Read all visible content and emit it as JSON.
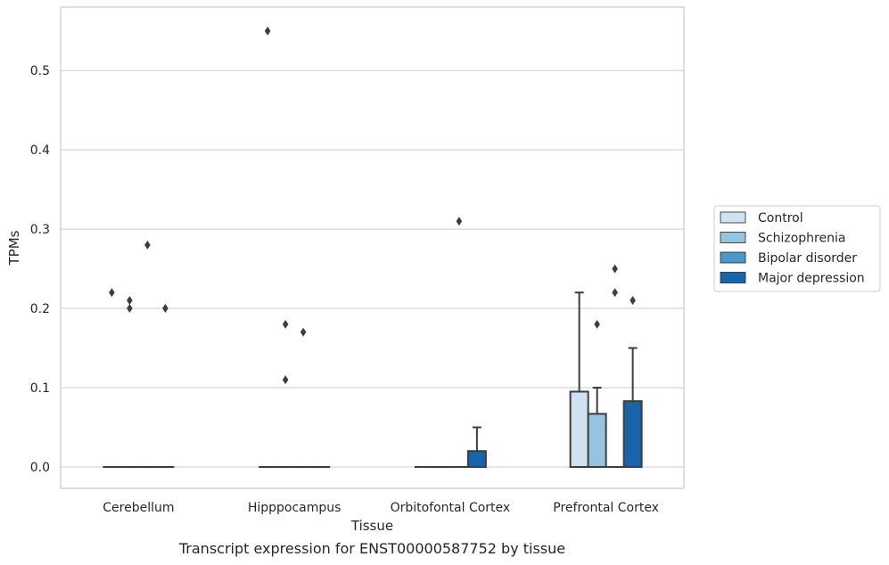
{
  "chart_data": {
    "type": "box",
    "title": "",
    "caption": "Transcript expression for ENST00000587752 by tissue",
    "xlabel": "Tissue",
    "ylabel": "TPMs",
    "ylim": [
      -0.027,
      0.58
    ],
    "yticks": [
      0.0,
      0.1,
      0.2,
      0.3,
      0.4,
      0.5
    ],
    "ytick_labels": [
      "0.0",
      "0.1",
      "0.2",
      "0.3",
      "0.4",
      "0.5"
    ],
    "grid": "horizontal",
    "legend_position": "right",
    "categories": [
      "Cerebellum",
      "Hipppocampus",
      "Orbitofontal Cortex",
      "Prefrontal Cortex"
    ],
    "series": [
      {
        "name": "Control",
        "color": "#d0e1f2",
        "boxes": [
          {
            "q1": 0,
            "median": 0,
            "q3": 0,
            "whisker_low": 0,
            "whisker_high": 0,
            "outliers": [
              0.22
            ]
          },
          {
            "q1": 0,
            "median": 0,
            "q3": 0,
            "whisker_low": 0,
            "whisker_high": 0,
            "outliers": [
              0.55
            ]
          },
          {
            "q1": 0,
            "median": 0,
            "q3": 0,
            "whisker_low": 0,
            "whisker_high": 0,
            "outliers": []
          },
          {
            "q1": 0,
            "median": 0,
            "q3": 0.095,
            "whisker_low": 0,
            "whisker_high": 0.22,
            "outliers": []
          }
        ]
      },
      {
        "name": "Schizophrenia",
        "color": "#94c4df",
        "boxes": [
          {
            "q1": 0,
            "median": 0,
            "q3": 0,
            "whisker_low": 0,
            "whisker_high": 0,
            "outliers": [
              0.21,
              0.2
            ]
          },
          {
            "q1": 0,
            "median": 0,
            "q3": 0,
            "whisker_low": 0,
            "whisker_high": 0,
            "outliers": [
              0.18,
              0.11
            ]
          },
          {
            "q1": 0,
            "median": 0,
            "q3": 0,
            "whisker_low": 0,
            "whisker_high": 0,
            "outliers": []
          },
          {
            "q1": 0,
            "median": 0,
            "q3": 0.067,
            "whisker_low": 0,
            "whisker_high": 0.1,
            "outliers": [
              0.18
            ]
          }
        ]
      },
      {
        "name": "Bipolar disorder",
        "color": "#4a98c9",
        "boxes": [
          {
            "q1": 0,
            "median": 0,
            "q3": 0,
            "whisker_low": 0,
            "whisker_high": 0,
            "outliers": [
              0.28
            ]
          },
          {
            "q1": 0,
            "median": 0,
            "q3": 0,
            "whisker_low": 0,
            "whisker_high": 0,
            "outliers": [
              0.17
            ]
          },
          {
            "q1": 0,
            "median": 0,
            "q3": 0,
            "whisker_low": 0,
            "whisker_high": 0,
            "outliers": [
              0.31
            ]
          },
          {
            "q1": 0,
            "median": 0,
            "q3": 0,
            "whisker_low": 0,
            "whisker_high": 0,
            "outliers": [
              0.25,
              0.22
            ]
          }
        ]
      },
      {
        "name": "Major depression",
        "color": "#1764ab",
        "boxes": [
          {
            "q1": 0,
            "median": 0,
            "q3": 0,
            "whisker_low": 0,
            "whisker_high": 0,
            "outliers": [
              0.2
            ]
          },
          {
            "q1": 0,
            "median": 0,
            "q3": 0,
            "whisker_low": 0,
            "whisker_high": 0,
            "outliers": []
          },
          {
            "q1": 0,
            "median": 0,
            "q3": 0.02,
            "whisker_low": 0,
            "whisker_high": 0.05,
            "outliers": []
          },
          {
            "q1": 0,
            "median": 0,
            "q3": 0.083,
            "whisker_low": 0,
            "whisker_high": 0.15,
            "outliers": [
              0.21
            ]
          }
        ]
      }
    ]
  }
}
